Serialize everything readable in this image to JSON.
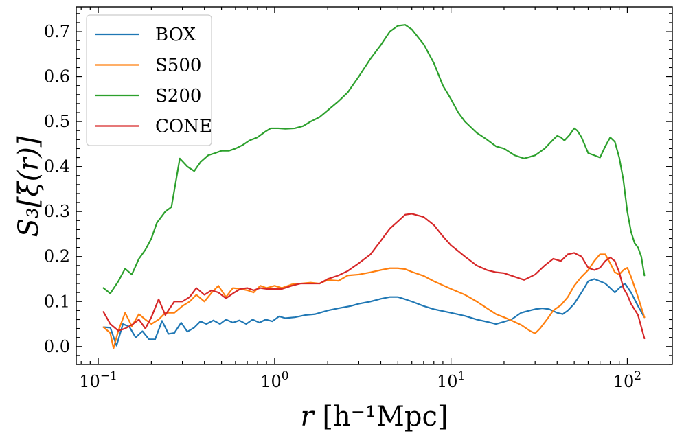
{
  "chart_data": {
    "type": "line",
    "xscale": "log",
    "xlim": [
      0.075,
      180
    ],
    "ylim": [
      -0.04,
      0.755
    ],
    "xlabel": {
      "var": "r",
      "unit": "[h⁻¹Mpc]"
    },
    "ylabel": {
      "text": "S₃[ξ(r)]"
    },
    "x_ticks": [
      {
        "value": 0.1,
        "base": "10",
        "exp": "−1"
      },
      {
        "value": 1,
        "base": "10",
        "exp": "0"
      },
      {
        "value": 10,
        "base": "10",
        "exp": "1"
      },
      {
        "value": 100,
        "base": "10",
        "exp": "2"
      }
    ],
    "y_ticks": [
      {
        "value": 0.0,
        "label": "0.0"
      },
      {
        "value": 0.1,
        "label": "0.1"
      },
      {
        "value": 0.2,
        "label": "0.2"
      },
      {
        "value": 0.3,
        "label": "0.3"
      },
      {
        "value": 0.4,
        "label": "0.4"
      },
      {
        "value": 0.5,
        "label": "0.5"
      },
      {
        "value": 0.6,
        "label": "0.6"
      },
      {
        "value": 0.7,
        "label": "0.7"
      }
    ],
    "legend_position": "top-left",
    "series": [
      {
        "name": "BOX",
        "color": "#1f77b4",
        "points": [
          [
            0.107,
            0.043
          ],
          [
            0.117,
            0.042
          ],
          [
            0.127,
            0.002
          ],
          [
            0.138,
            0.05
          ],
          [
            0.15,
            0.044
          ],
          [
            0.163,
            0.02
          ],
          [
            0.178,
            0.034
          ],
          [
            0.194,
            0.016
          ],
          [
            0.21,
            0.016
          ],
          [
            0.23,
            0.057
          ],
          [
            0.25,
            0.028
          ],
          [
            0.27,
            0.03
          ],
          [
            0.295,
            0.053
          ],
          [
            0.32,
            0.033
          ],
          [
            0.35,
            0.042
          ],
          [
            0.38,
            0.056
          ],
          [
            0.41,
            0.05
          ],
          [
            0.45,
            0.058
          ],
          [
            0.49,
            0.05
          ],
          [
            0.53,
            0.06
          ],
          [
            0.58,
            0.053
          ],
          [
            0.63,
            0.058
          ],
          [
            0.69,
            0.05
          ],
          [
            0.75,
            0.06
          ],
          [
            0.82,
            0.053
          ],
          [
            0.89,
            0.06
          ],
          [
            0.97,
            0.056
          ],
          [
            1.06,
            0.067
          ],
          [
            1.15,
            0.063
          ],
          [
            1.3,
            0.065
          ],
          [
            1.5,
            0.07
          ],
          [
            1.7,
            0.072
          ],
          [
            2.0,
            0.08
          ],
          [
            2.3,
            0.085
          ],
          [
            2.7,
            0.09
          ],
          [
            3.0,
            0.095
          ],
          [
            3.5,
            0.1
          ],
          [
            4.0,
            0.106
          ],
          [
            4.5,
            0.11
          ],
          [
            5.0,
            0.11
          ],
          [
            5.5,
            0.105
          ],
          [
            6.0,
            0.1
          ],
          [
            7.0,
            0.09
          ],
          [
            8.0,
            0.083
          ],
          [
            10.0,
            0.075
          ],
          [
            12.0,
            0.068
          ],
          [
            14.0,
            0.06
          ],
          [
            16.0,
            0.055
          ],
          [
            18.0,
            0.05
          ],
          [
            20.0,
            0.055
          ],
          [
            22.0,
            0.06
          ],
          [
            25.0,
            0.075
          ],
          [
            28.0,
            0.08
          ],
          [
            30.0,
            0.083
          ],
          [
            33.0,
            0.085
          ],
          [
            36.0,
            0.083
          ],
          [
            40.0,
            0.075
          ],
          [
            43.0,
            0.072
          ],
          [
            46.0,
            0.08
          ],
          [
            50.0,
            0.095
          ],
          [
            55.0,
            0.12
          ],
          [
            60.0,
            0.145
          ],
          [
            65.0,
            0.15
          ],
          [
            70.0,
            0.145
          ],
          [
            75.0,
            0.14
          ],
          [
            80.0,
            0.13
          ],
          [
            85.0,
            0.12
          ],
          [
            90.0,
            0.13
          ],
          [
            97.0,
            0.14
          ],
          [
            105.0,
            0.12
          ],
          [
            115.0,
            0.09
          ],
          [
            125.0,
            0.065
          ]
        ]
      },
      {
        "name": "S500",
        "color": "#ff7f0e",
        "points": [
          [
            0.107,
            0.043
          ],
          [
            0.117,
            0.03
          ],
          [
            0.122,
            -0.004
          ],
          [
            0.13,
            0.035
          ],
          [
            0.142,
            0.075
          ],
          [
            0.155,
            0.045
          ],
          [
            0.17,
            0.072
          ],
          [
            0.185,
            0.06
          ],
          [
            0.2,
            0.05
          ],
          [
            0.22,
            0.06
          ],
          [
            0.24,
            0.075
          ],
          [
            0.27,
            0.075
          ],
          [
            0.3,
            0.09
          ],
          [
            0.33,
            0.1
          ],
          [
            0.36,
            0.115
          ],
          [
            0.4,
            0.1
          ],
          [
            0.44,
            0.12
          ],
          [
            0.48,
            0.135
          ],
          [
            0.53,
            0.11
          ],
          [
            0.58,
            0.13
          ],
          [
            0.64,
            0.128
          ],
          [
            0.7,
            0.125
          ],
          [
            0.76,
            0.12
          ],
          [
            0.83,
            0.135
          ],
          [
            0.9,
            0.13
          ],
          [
            1.0,
            0.135
          ],
          [
            1.1,
            0.13
          ],
          [
            1.25,
            0.138
          ],
          [
            1.4,
            0.14
          ],
          [
            1.6,
            0.142
          ],
          [
            1.8,
            0.14
          ],
          [
            2.0,
            0.148
          ],
          [
            2.3,
            0.146
          ],
          [
            2.6,
            0.158
          ],
          [
            3.0,
            0.16
          ],
          [
            3.5,
            0.165
          ],
          [
            4.0,
            0.17
          ],
          [
            4.5,
            0.174
          ],
          [
            5.0,
            0.174
          ],
          [
            5.5,
            0.172
          ],
          [
            6.0,
            0.166
          ],
          [
            7.0,
            0.157
          ],
          [
            8.0,
            0.145
          ],
          [
            10.0,
            0.128
          ],
          [
            12.0,
            0.115
          ],
          [
            14.0,
            0.1
          ],
          [
            16.0,
            0.085
          ],
          [
            18.0,
            0.072
          ],
          [
            20.0,
            0.065
          ],
          [
            22.0,
            0.058
          ],
          [
            25.0,
            0.048
          ],
          [
            28.0,
            0.035
          ],
          [
            30.0,
            0.029
          ],
          [
            32.0,
            0.04
          ],
          [
            35.0,
            0.06
          ],
          [
            38.0,
            0.08
          ],
          [
            42.0,
            0.092
          ],
          [
            46.0,
            0.11
          ],
          [
            50.0,
            0.135
          ],
          [
            55.0,
            0.155
          ],
          [
            60.0,
            0.17
          ],
          [
            65.0,
            0.19
          ],
          [
            70.0,
            0.205
          ],
          [
            75.0,
            0.205
          ],
          [
            80.0,
            0.185
          ],
          [
            85.0,
            0.165
          ],
          [
            90.0,
            0.16
          ],
          [
            95.0,
            0.17
          ],
          [
            100.0,
            0.175
          ],
          [
            105.0,
            0.155
          ],
          [
            115.0,
            0.11
          ],
          [
            125.0,
            0.065
          ]
        ]
      },
      {
        "name": "S200",
        "color": "#2ca02c",
        "points": [
          [
            0.107,
            0.13
          ],
          [
            0.117,
            0.118
          ],
          [
            0.13,
            0.145
          ],
          [
            0.142,
            0.173
          ],
          [
            0.155,
            0.16
          ],
          [
            0.17,
            0.195
          ],
          [
            0.185,
            0.215
          ],
          [
            0.2,
            0.24
          ],
          [
            0.215,
            0.275
          ],
          [
            0.24,
            0.3
          ],
          [
            0.26,
            0.31
          ],
          [
            0.29,
            0.418
          ],
          [
            0.32,
            0.4
          ],
          [
            0.35,
            0.39
          ],
          [
            0.38,
            0.41
          ],
          [
            0.42,
            0.425
          ],
          [
            0.46,
            0.43
          ],
          [
            0.5,
            0.435
          ],
          [
            0.55,
            0.435
          ],
          [
            0.6,
            0.44
          ],
          [
            0.66,
            0.448
          ],
          [
            0.72,
            0.458
          ],
          [
            0.8,
            0.465
          ],
          [
            0.88,
            0.477
          ],
          [
            0.95,
            0.485
          ],
          [
            1.05,
            0.485
          ],
          [
            1.15,
            0.484
          ],
          [
            1.3,
            0.485
          ],
          [
            1.45,
            0.49
          ],
          [
            1.6,
            0.5
          ],
          [
            1.8,
            0.51
          ],
          [
            2.0,
            0.525
          ],
          [
            2.3,
            0.545
          ],
          [
            2.6,
            0.565
          ],
          [
            3.0,
            0.6
          ],
          [
            3.5,
            0.64
          ],
          [
            4.0,
            0.67
          ],
          [
            4.5,
            0.7
          ],
          [
            5.0,
            0.713
          ],
          [
            5.5,
            0.715
          ],
          [
            6.0,
            0.705
          ],
          [
            7.0,
            0.672
          ],
          [
            8.0,
            0.63
          ],
          [
            9.0,
            0.58
          ],
          [
            10.0,
            0.55
          ],
          [
            11.0,
            0.52
          ],
          [
            12.0,
            0.5
          ],
          [
            14.0,
            0.475
          ],
          [
            16.0,
            0.46
          ],
          [
            18.0,
            0.445
          ],
          [
            20.0,
            0.44
          ],
          [
            23.0,
            0.425
          ],
          [
            26.0,
            0.418
          ],
          [
            30.0,
            0.425
          ],
          [
            34.0,
            0.44
          ],
          [
            38.0,
            0.46
          ],
          [
            40.0,
            0.468
          ],
          [
            42.0,
            0.465
          ],
          [
            44.0,
            0.458
          ],
          [
            47.0,
            0.47
          ],
          [
            50.0,
            0.485
          ],
          [
            52.0,
            0.48
          ],
          [
            55.0,
            0.465
          ],
          [
            60.0,
            0.43
          ],
          [
            65.0,
            0.425
          ],
          [
            70.0,
            0.42
          ],
          [
            75.0,
            0.445
          ],
          [
            80.0,
            0.465
          ],
          [
            85.0,
            0.455
          ],
          [
            90.0,
            0.42
          ],
          [
            95.0,
            0.37
          ],
          [
            100.0,
            0.3
          ],
          [
            105.0,
            0.255
          ],
          [
            110.0,
            0.23
          ],
          [
            115.0,
            0.22
          ],
          [
            120.0,
            0.2
          ],
          [
            125.0,
            0.158
          ]
        ]
      },
      {
        "name": "CONE",
        "color": "#d62728",
        "points": [
          [
            0.107,
            0.077
          ],
          [
            0.117,
            0.05
          ],
          [
            0.13,
            0.035
          ],
          [
            0.142,
            0.04
          ],
          [
            0.155,
            0.048
          ],
          [
            0.17,
            0.06
          ],
          [
            0.185,
            0.04
          ],
          [
            0.2,
            0.065
          ],
          [
            0.22,
            0.105
          ],
          [
            0.24,
            0.07
          ],
          [
            0.27,
            0.1
          ],
          [
            0.3,
            0.1
          ],
          [
            0.33,
            0.11
          ],
          [
            0.36,
            0.13
          ],
          [
            0.4,
            0.115
          ],
          [
            0.44,
            0.125
          ],
          [
            0.48,
            0.12
          ],
          [
            0.53,
            0.107
          ],
          [
            0.58,
            0.118
          ],
          [
            0.64,
            0.128
          ],
          [
            0.7,
            0.13
          ],
          [
            0.76,
            0.125
          ],
          [
            0.83,
            0.13
          ],
          [
            0.9,
            0.128
          ],
          [
            1.0,
            0.128
          ],
          [
            1.1,
            0.128
          ],
          [
            1.25,
            0.135
          ],
          [
            1.4,
            0.14
          ],
          [
            1.6,
            0.14
          ],
          [
            1.8,
            0.14
          ],
          [
            2.0,
            0.15
          ],
          [
            2.3,
            0.158
          ],
          [
            2.6,
            0.168
          ],
          [
            3.0,
            0.185
          ],
          [
            3.5,
            0.205
          ],
          [
            4.0,
            0.235
          ],
          [
            4.5,
            0.262
          ],
          [
            5.0,
            0.278
          ],
          [
            5.5,
            0.293
          ],
          [
            6.0,
            0.295
          ],
          [
            7.0,
            0.288
          ],
          [
            8.0,
            0.27
          ],
          [
            9.0,
            0.245
          ],
          [
            10.0,
            0.225
          ],
          [
            12.0,
            0.2
          ],
          [
            14.0,
            0.18
          ],
          [
            16.0,
            0.17
          ],
          [
            18.0,
            0.165
          ],
          [
            20.0,
            0.163
          ],
          [
            23.0,
            0.155
          ],
          [
            26.0,
            0.148
          ],
          [
            30.0,
            0.16
          ],
          [
            34.0,
            0.18
          ],
          [
            38.0,
            0.195
          ],
          [
            42.0,
            0.19
          ],
          [
            46.0,
            0.205
          ],
          [
            50.0,
            0.208
          ],
          [
            55.0,
            0.2
          ],
          [
            60.0,
            0.175
          ],
          [
            65.0,
            0.17
          ],
          [
            70.0,
            0.175
          ],
          [
            75.0,
            0.19
          ],
          [
            80.0,
            0.198
          ],
          [
            85.0,
            0.19
          ],
          [
            90.0,
            0.165
          ],
          [
            95.0,
            0.13
          ],
          [
            100.0,
            0.115
          ],
          [
            105.0,
            0.095
          ],
          [
            115.0,
            0.07
          ],
          [
            125.0,
            0.018
          ]
        ]
      }
    ]
  }
}
